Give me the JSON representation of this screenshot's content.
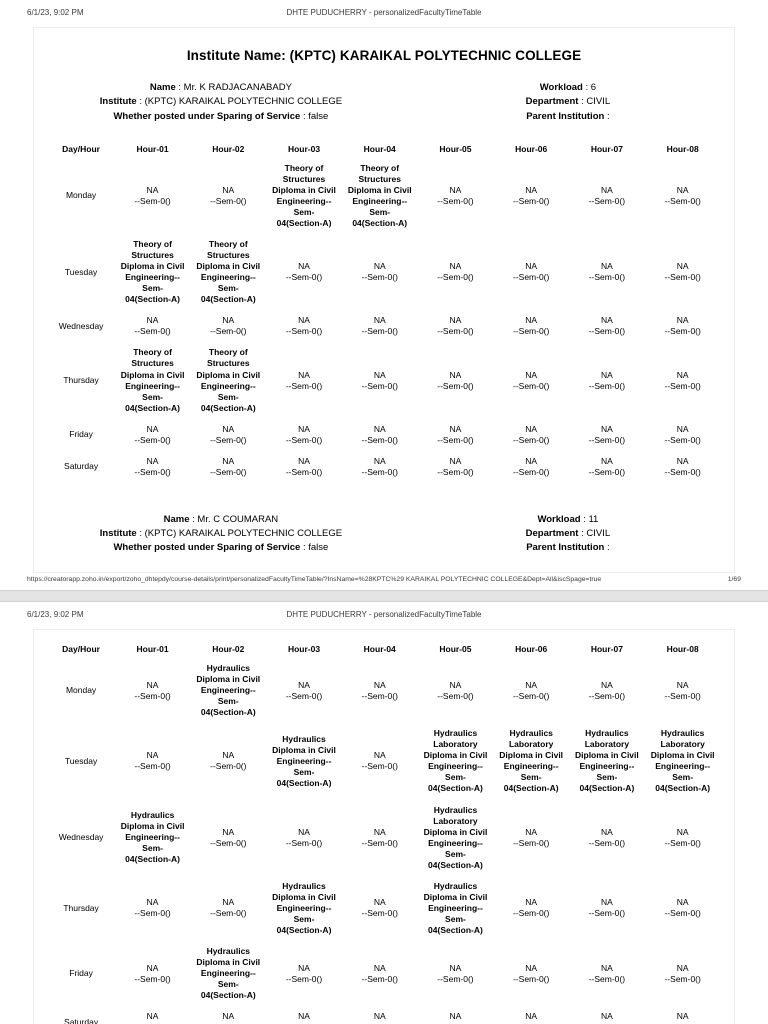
{
  "header": {
    "datetime": "6/1/23, 9:02 PM",
    "doc_title": "DHTE PUDUCHERRY - personalizedFacultyTimeTable"
  },
  "footer": {
    "url": "https://creatorapp.zoho.in/export/zoho_dhtepdy/course-details/print/personalizedFacultyTimeTable/?InsName=%28KPTC%29 KARAIKAL POLYTECHNIC COLLEGE&Dept=All&iscSpage=true",
    "page_number": "1/69"
  },
  "page1": {
    "institute_title": "Institute Name: (KPTC) KARAIKAL POLYTECHNIC COLLEGE"
  },
  "faculty_blocks": [
    {
      "left": [
        {
          "label": "Name",
          "value": "Mr. K RADJACANABADY"
        },
        {
          "label": "Institute",
          "value": "(KPTC) KARAIKAL POLYTECHNIC COLLEGE"
        },
        {
          "label": "Whether posted under Sparing of Service",
          "value": "false"
        }
      ],
      "right": [
        {
          "label": "Workload",
          "value": "6"
        },
        {
          "label": "Department",
          "value": "CIVIL"
        },
        {
          "label": "Parent Institution",
          "value": ""
        }
      ]
    },
    {
      "left": [
        {
          "label": "Name",
          "value": "Mr. C COUMARAN"
        },
        {
          "label": "Institute",
          "value": "(KPTC) KARAIKAL POLYTECHNIC COLLEGE"
        },
        {
          "label": "Whether posted under Sparing of Service",
          "value": "false"
        }
      ],
      "right": [
        {
          "label": "Workload",
          "value": "11"
        },
        {
          "label": "Department",
          "value": "CIVIL"
        },
        {
          "label": "Parent Institution",
          "value": ""
        }
      ]
    }
  ],
  "cell_types": {
    "NA": {
      "text": "NA\n--Sem-0()",
      "bold": false
    },
    "TOS": {
      "text": "Theory of\nStructures\nDiploma in Civil\nEngineering--\nSem-\n04(Section-A)",
      "bold": true
    },
    "HYD": {
      "text": "Hydraulics\nDiploma in Civil\nEngineering--\nSem-\n04(Section-A)",
      "bold": true
    },
    "HYDLAB": {
      "text": "Hydraulics\nLaboratory\nDiploma in Civil\nEngineering--\nSem-\n04(Section-A)",
      "bold": true
    }
  },
  "timetables": [
    {
      "columns": [
        "Day/Hour",
        "Hour-01",
        "Hour-02",
        "Hour-03",
        "Hour-04",
        "Hour-05",
        "Hour-06",
        "Hour-07",
        "Hour-08"
      ],
      "rows": [
        {
          "day": "Monday",
          "cells": [
            "NA",
            "NA",
            "TOS",
            "TOS",
            "NA",
            "NA",
            "NA",
            "NA"
          ]
        },
        {
          "day": "Tuesday",
          "cells": [
            "TOS",
            "TOS",
            "NA",
            "NA",
            "NA",
            "NA",
            "NA",
            "NA"
          ]
        },
        {
          "day": "Wednesday",
          "cells": [
            "NA",
            "NA",
            "NA",
            "NA",
            "NA",
            "NA",
            "NA",
            "NA"
          ]
        },
        {
          "day": "Thursday",
          "cells": [
            "TOS",
            "TOS",
            "NA",
            "NA",
            "NA",
            "NA",
            "NA",
            "NA"
          ]
        },
        {
          "day": "Friday",
          "cells": [
            "NA",
            "NA",
            "NA",
            "NA",
            "NA",
            "NA",
            "NA",
            "NA"
          ]
        },
        {
          "day": "Saturday",
          "cells": [
            "NA",
            "NA",
            "NA",
            "NA",
            "NA",
            "NA",
            "NA",
            "NA"
          ]
        }
      ]
    },
    {
      "columns": [
        "Day/Hour",
        "Hour-01",
        "Hour-02",
        "Hour-03",
        "Hour-04",
        "Hour-05",
        "Hour-06",
        "Hour-07",
        "Hour-08"
      ],
      "rows": [
        {
          "day": "Monday",
          "cells": [
            "NA",
            "HYD",
            "NA",
            "NA",
            "NA",
            "NA",
            "NA",
            "NA"
          ]
        },
        {
          "day": "Tuesday",
          "cells": [
            "NA",
            "NA",
            "HYD",
            "NA",
            "HYDLAB",
            "HYDLAB",
            "HYDLAB",
            "HYDLAB"
          ]
        },
        {
          "day": "Wednesday",
          "cells": [
            "HYD",
            "NA",
            "NA",
            "NA",
            "HYDLAB",
            "NA",
            "NA",
            "NA"
          ]
        },
        {
          "day": "Thursday",
          "cells": [
            "NA",
            "NA",
            "HYD",
            "NA",
            "HYD",
            "NA",
            "NA",
            "NA"
          ]
        },
        {
          "day": "Friday",
          "cells": [
            "NA",
            "HYD",
            "NA",
            "NA",
            "NA",
            "NA",
            "NA",
            "NA"
          ]
        },
        {
          "day": "Saturday",
          "cells": [
            "NA",
            "NA",
            "NA",
            "NA",
            "NA",
            "NA",
            "NA",
            "NA"
          ]
        }
      ]
    }
  ]
}
